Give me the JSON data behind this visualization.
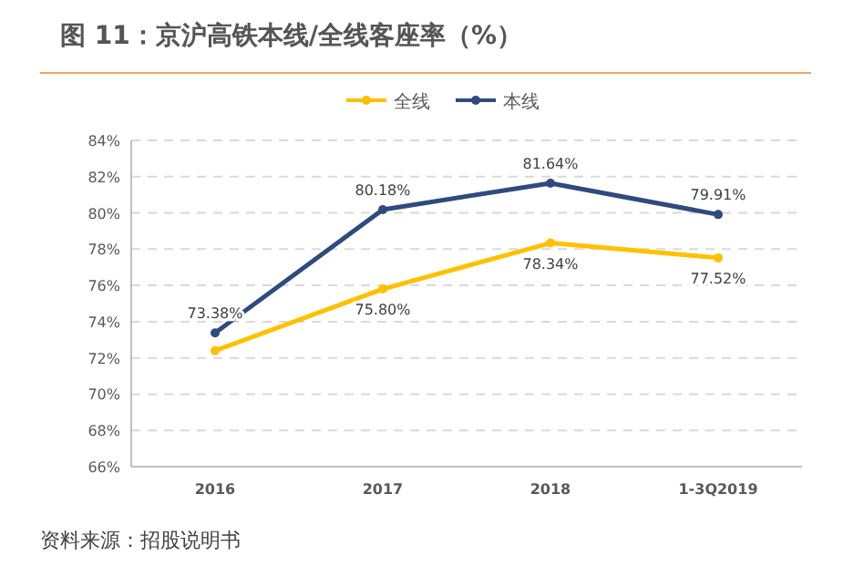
{
  "chart_data": {
    "type": "line",
    "title": "图 11：京沪高铁本线/全线客座率（%）",
    "categories": [
      "2016",
      "2017",
      "2018",
      "1-3Q2019"
    ],
    "series": [
      {
        "name": "全线",
        "color": "#ffc000",
        "values": [
          72.4,
          75.8,
          78.34,
          77.52
        ],
        "value_labels": [
          null,
          "75.80%",
          "78.34%",
          "77.52%"
        ]
      },
      {
        "name": "本线",
        "color": "#2f4a7f",
        "values": [
          73.38,
          80.18,
          81.64,
          79.91
        ],
        "value_labels": [
          "73.38%",
          "80.18%",
          "81.64%",
          "79.91%"
        ]
      }
    ],
    "ylim": [
      66,
      84
    ],
    "yticks": [
      {
        "value": 66,
        "label": "66%"
      },
      {
        "value": 68,
        "label": "68%"
      },
      {
        "value": 70,
        "label": "70%"
      },
      {
        "value": 72,
        "label": "72%"
      },
      {
        "value": 74,
        "label": "74%"
      },
      {
        "value": 76,
        "label": "76%"
      },
      {
        "value": 78,
        "label": "78%"
      },
      {
        "value": 80,
        "label": "80%"
      },
      {
        "value": 82,
        "label": "82%"
      },
      {
        "value": 84,
        "label": "84%"
      }
    ],
    "grid": "y",
    "legend": "top",
    "marker": "circle",
    "line_style": "solid",
    "annotations": [
      "资料来源：招股说明书"
    ]
  }
}
